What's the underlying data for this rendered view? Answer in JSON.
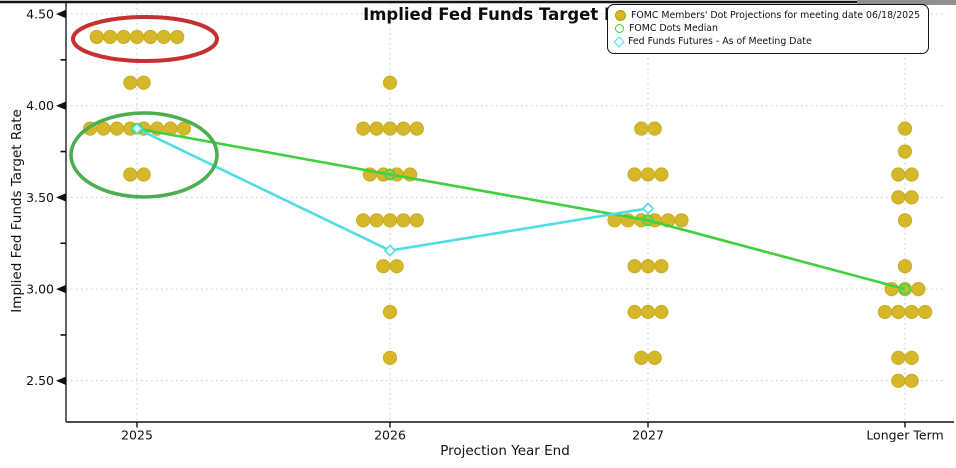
{
  "title": "Implied Fed Funds Target Rate",
  "legend": {
    "items": [
      {
        "label": "FOMC Members' Dot Projections for meeting date 06/18/2025",
        "marker": "filled-circle",
        "color": "#d4b82a"
      },
      {
        "label": "FOMC Dots Median",
        "marker": "open-circle",
        "color": "#44cc44"
      },
      {
        "label": "Fed Funds Futures - As of Meeting Date",
        "marker": "open-diamond",
        "color": "#45d9e0"
      }
    ]
  },
  "axes": {
    "x_label": "Projection Year End",
    "y_label": "Implied Fed Funds Target Rate",
    "x_categories": [
      "2025",
      "2026",
      "2027",
      "Longer Term"
    ],
    "y_ticks": [
      "4.50",
      "4.00",
      "3.50",
      "3.00",
      "2.50"
    ],
    "y_minor_ticks": [
      4.25,
      3.75,
      3.25,
      2.75
    ]
  },
  "chart_data": {
    "type": "scatter",
    "title": "Implied Fed Funds Target Rate",
    "xlabel": "Projection Year End",
    "ylabel": "Implied Fed Funds Target Rate",
    "ylim": [
      2.5,
      4.5
    ],
    "grid": "dashed horizontal and vertical",
    "legend_position": "top-right",
    "categories": [
      "2025",
      "2026",
      "2027",
      "Longer Term"
    ],
    "dot_projections": [
      {
        "category": "2025",
        "dots": [
          {
            "rate": 4.375,
            "count": 7
          },
          {
            "rate": 4.125,
            "count": 2
          },
          {
            "rate": 3.875,
            "count": 8
          },
          {
            "rate": 3.625,
            "count": 2
          }
        ]
      },
      {
        "category": "2026",
        "dots": [
          {
            "rate": 4.125,
            "count": 1
          },
          {
            "rate": 3.875,
            "count": 5
          },
          {
            "rate": 3.625,
            "count": 4
          },
          {
            "rate": 3.375,
            "count": 5
          },
          {
            "rate": 3.125,
            "count": 2
          },
          {
            "rate": 2.875,
            "count": 1
          },
          {
            "rate": 2.625,
            "count": 1
          }
        ]
      },
      {
        "category": "2027",
        "dots": [
          {
            "rate": 3.875,
            "count": 2
          },
          {
            "rate": 3.625,
            "count": 3
          },
          {
            "rate": 3.375,
            "count": 6
          },
          {
            "rate": 3.125,
            "count": 3
          },
          {
            "rate": 2.875,
            "count": 3
          },
          {
            "rate": 2.625,
            "count": 2
          }
        ]
      },
      {
        "category": "Longer Term",
        "dots": [
          {
            "rate": 3.875,
            "count": 1
          },
          {
            "rate": 3.75,
            "count": 1
          },
          {
            "rate": 3.625,
            "count": 2
          },
          {
            "rate": 3.5,
            "count": 2
          },
          {
            "rate": 3.375,
            "count": 1
          },
          {
            "rate": 3.125,
            "count": 1
          },
          {
            "rate": 3.0,
            "count": 3
          },
          {
            "rate": 2.875,
            "count": 4
          },
          {
            "rate": 2.625,
            "count": 2
          },
          {
            "rate": 2.5,
            "count": 2
          }
        ]
      }
    ],
    "series": [
      {
        "name": "FOMC Dots Median",
        "type": "line+open-circle",
        "color": "#44cc44",
        "categories": [
          "2025",
          "2026",
          "2027",
          "Longer Term"
        ],
        "values": [
          3.875,
          3.625,
          3.375,
          3.0
        ]
      },
      {
        "name": "Fed Funds Futures - As of Meeting Date",
        "type": "line+open-diamond",
        "color": "#45d9e0",
        "categories": [
          "2025",
          "2026",
          "2027"
        ],
        "values": [
          3.875,
          3.21,
          3.44
        ]
      }
    ],
    "annotations": [
      {
        "shape": "ellipse",
        "color": "#c53030",
        "around": "2025 dots at 4.375"
      },
      {
        "shape": "ellipse",
        "color": "#4cae4c",
        "around": "2025 dots at 3.875 and 3.625 (median cluster)"
      }
    ]
  },
  "colors": {
    "dots": "#d4b82a",
    "dot_edge": "#c9ad22",
    "median_line": "#3fcf3f",
    "futures_line": "#4fdce2",
    "red_ellipse": "#c53030",
    "green_ellipse": "#4cae4c",
    "grid": "#c9c9c9",
    "axis": "#111111"
  }
}
